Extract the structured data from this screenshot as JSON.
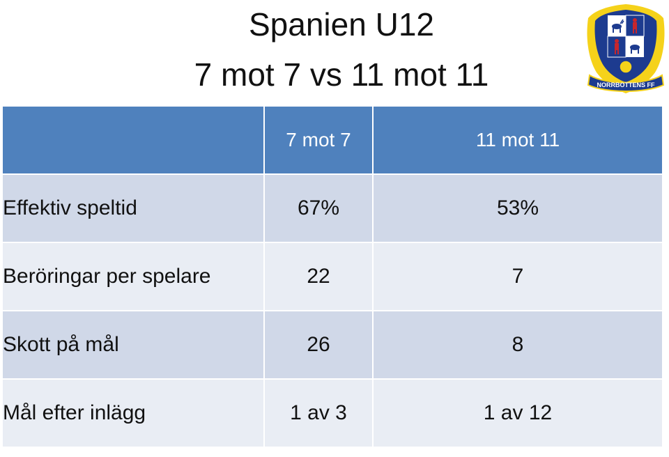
{
  "title": {
    "line1": "Spanien U12",
    "line2": "7 mot 7 vs 11 mot 11"
  },
  "logo": {
    "text": "NORRBOTTENS FF",
    "colors": {
      "yellow": "#f5d21a",
      "navy": "#1d3b8f",
      "red": "#c8262c",
      "white": "#ffffff"
    }
  },
  "table": {
    "headers": [
      "",
      "7 mot 7",
      "11 mot 11"
    ],
    "rows": [
      {
        "label": "Effektiv speltid",
        "a": "67%",
        "b": "53%"
      },
      {
        "label": "Beröringar per spelare",
        "a": "22",
        "b": "7"
      },
      {
        "label": "Skott på mål",
        "a": "26",
        "b": "8"
      },
      {
        "label": "Mål efter inlägg",
        "a": "1 av 3",
        "b": "1 av 12"
      }
    ],
    "colors": {
      "header": "#4f81bd",
      "row_dark": "#d0d8e8",
      "row_light": "#e9edf4"
    }
  }
}
